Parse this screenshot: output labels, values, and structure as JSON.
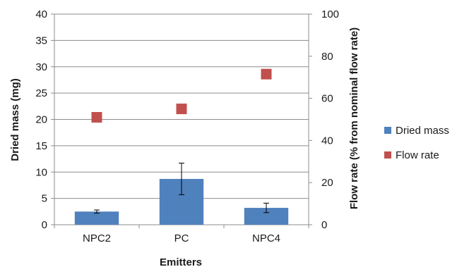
{
  "chart_data": {
    "type": "bar",
    "categories": [
      "NPC2",
      "PC",
      "NPC4"
    ],
    "series": [
      {
        "name": "Dried mass",
        "kind": "bar",
        "axis": "left",
        "values": [
          2.5,
          8.7,
          3.2
        ],
        "error": [
          0.3,
          3.0,
          0.9
        ],
        "color": "#4f81bd"
      },
      {
        "name": "Flow rate",
        "kind": "scatter",
        "axis": "right",
        "values": [
          51,
          55,
          71.5
        ],
        "color": "#c0504d"
      }
    ],
    "xlabel": "Emitters",
    "ylabel": "Dried mass (mg)",
    "y2label": "Flow rate (% from nominal flow rate)",
    "ylim": [
      0,
      40
    ],
    "y2lim": [
      0,
      100
    ],
    "yticks": [
      "0",
      "5",
      "10",
      "15",
      "20",
      "25",
      "30",
      "35",
      "40"
    ],
    "y2ticks": [
      "0",
      "20",
      "40",
      "60",
      "80",
      "100"
    ],
    "grid": true,
    "legend": "right"
  }
}
